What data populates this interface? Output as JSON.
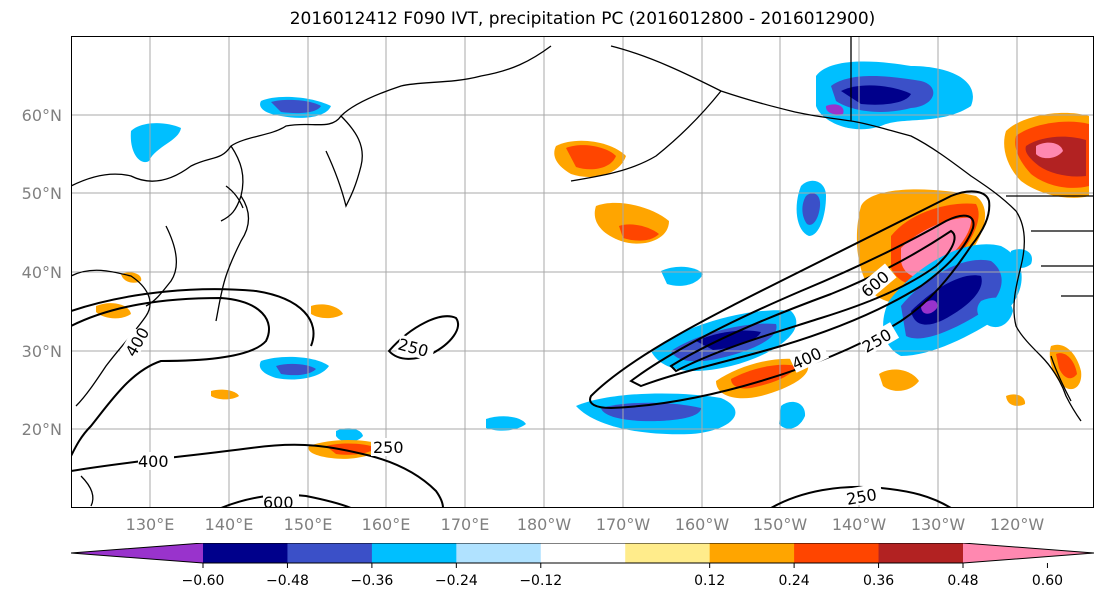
{
  "title": "2016012412 F090 IVT, precipitation PC (2016012800 - 2016012900)",
  "lat_labels": [
    "60°N",
    "50°N",
    "40°N",
    "30°N",
    "20°N"
  ],
  "lon_labels": [
    "130°E",
    "140°E",
    "150°E",
    "160°E",
    "170°E",
    "180°W",
    "170°W",
    "160°W",
    "150°W",
    "140°W",
    "130°W",
    "120°W"
  ],
  "contour_labels": [
    "400",
    "250",
    "400",
    "600",
    "400",
    "250",
    "600",
    "250",
    "250"
  ],
  "colorbar": {
    "tick_labels": [
      "−0.60",
      "−0.48",
      "−0.36",
      "−0.24",
      "−0.12",
      "0.12",
      "0.24",
      "0.36",
      "0.48",
      "0.60"
    ],
    "colors": [
      "#9933cc",
      "#00008b",
      "#3b50c8",
      "#00bfff",
      "#b0e2ff",
      "#ffffff",
      "#ffec8b",
      "#ffa500",
      "#ff4500",
      "#b22222",
      "#ff88b0"
    ]
  }
}
